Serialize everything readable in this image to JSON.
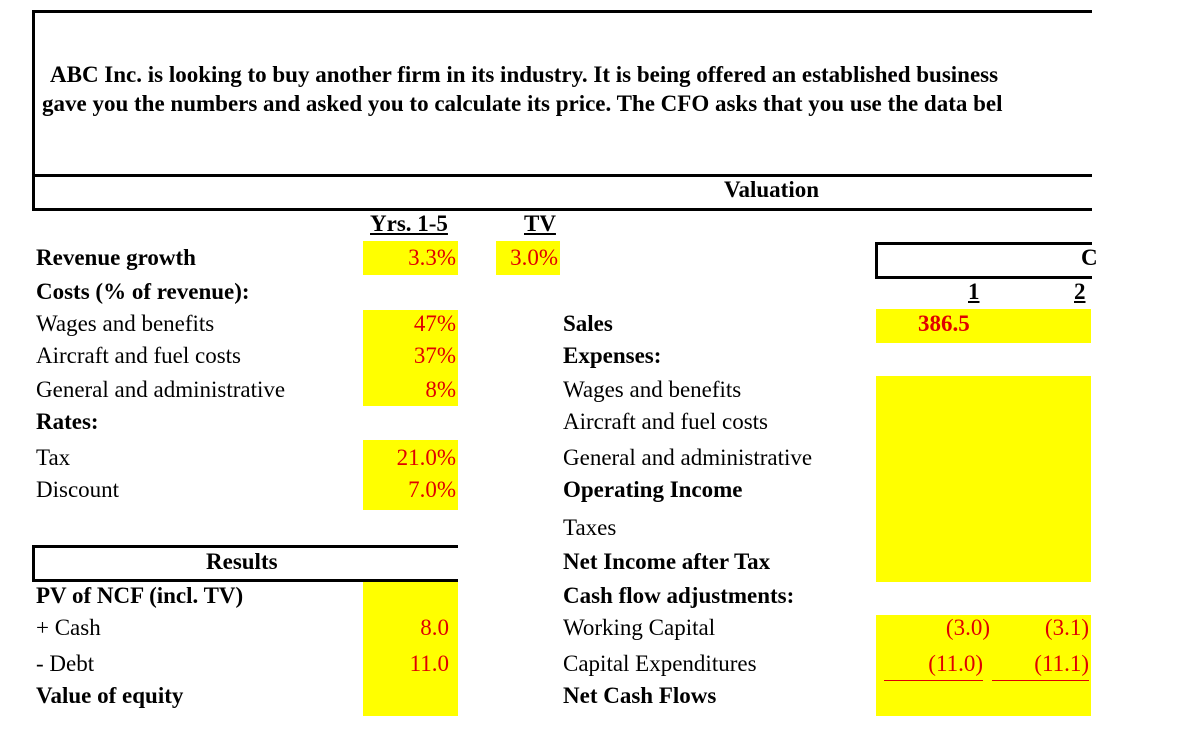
{
  "intro": {
    "line1": "ABC Inc. is looking to buy another firm in its industry. It is being offered an established business",
    "line2": "gave you the numbers and asked you to calculate its price. The CFO asks that you use the data bel"
  },
  "valuation_header": "Valuation",
  "assumptions": {
    "col_years": "Yrs. 1-5",
    "col_tv": "TV",
    "revenue_growth": {
      "label": "Revenue growth",
      "yrs": "3.3%",
      "tv": "3.0%"
    },
    "costs_header": "Costs (% of revenue):",
    "wages": {
      "label": "Wages and benefits",
      "value": "47%"
    },
    "aircraft": {
      "label": "Aircraft and fuel costs",
      "value": "37%"
    },
    "ga": {
      "label": "General and administrative",
      "value": "8%"
    },
    "rates_header": "Rates:",
    "tax": {
      "label": "Tax",
      "value": "21.0%"
    },
    "discount": {
      "label": "Discount",
      "value": "7.0%"
    }
  },
  "results": {
    "header": "Results",
    "pv_ncf": "PV of NCF (incl. TV)",
    "cash": {
      "label": " + Cash",
      "value": "8.0"
    },
    "debt": {
      "label": " - Debt",
      "value": "11.0"
    },
    "equity": "Value of equity"
  },
  "projection": {
    "header_partial": "C",
    "col1": "1",
    "col2": "2",
    "sales": {
      "label": "Sales",
      "y1": "386.5"
    },
    "expenses_header": "Expenses:",
    "wages": "Wages and benefits",
    "aircraft": "Aircraft and fuel costs",
    "ga": "General and administrative",
    "operating_income": "Operating Income",
    "taxes": "Taxes",
    "net_income": "Net Income after Tax",
    "cf_adj_header": "Cash flow adjustments:",
    "working_capital": {
      "label": "Working Capital",
      "y1": "(3.0)",
      "y2": "(3.1)"
    },
    "capex": {
      "label": "Capital Expenditures",
      "y1": "(11.0)",
      "y2": "(11.1)"
    },
    "ncf": "Net Cash Flows"
  }
}
